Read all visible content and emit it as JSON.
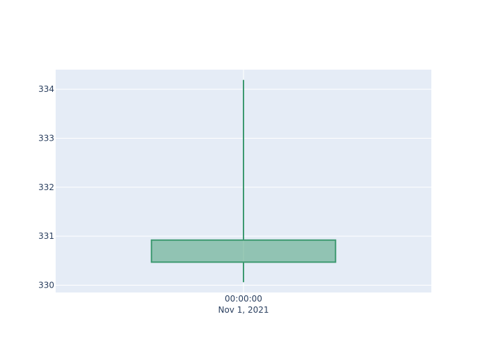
{
  "chart_data": {
    "type": "candlestick",
    "x_ticks": [
      {
        "time": "00:00:00",
        "date": "Nov 1, 2021"
      }
    ],
    "y_ticks": [
      330,
      331,
      332,
      333,
      334
    ],
    "ylim": [
      329.85,
      334.4
    ],
    "candles": [
      {
        "x": "2021-11-01 00:00:00",
        "open": 330.47,
        "high": 334.19,
        "low": 330.06,
        "close": 330.92,
        "direction": "increasing"
      }
    ],
    "increasing_color": "#3d9970",
    "increasing_fill": "rgba(61,153,112,0.5)",
    "plot_background": "#e5ecf6",
    "grid": true,
    "legend": "none"
  }
}
